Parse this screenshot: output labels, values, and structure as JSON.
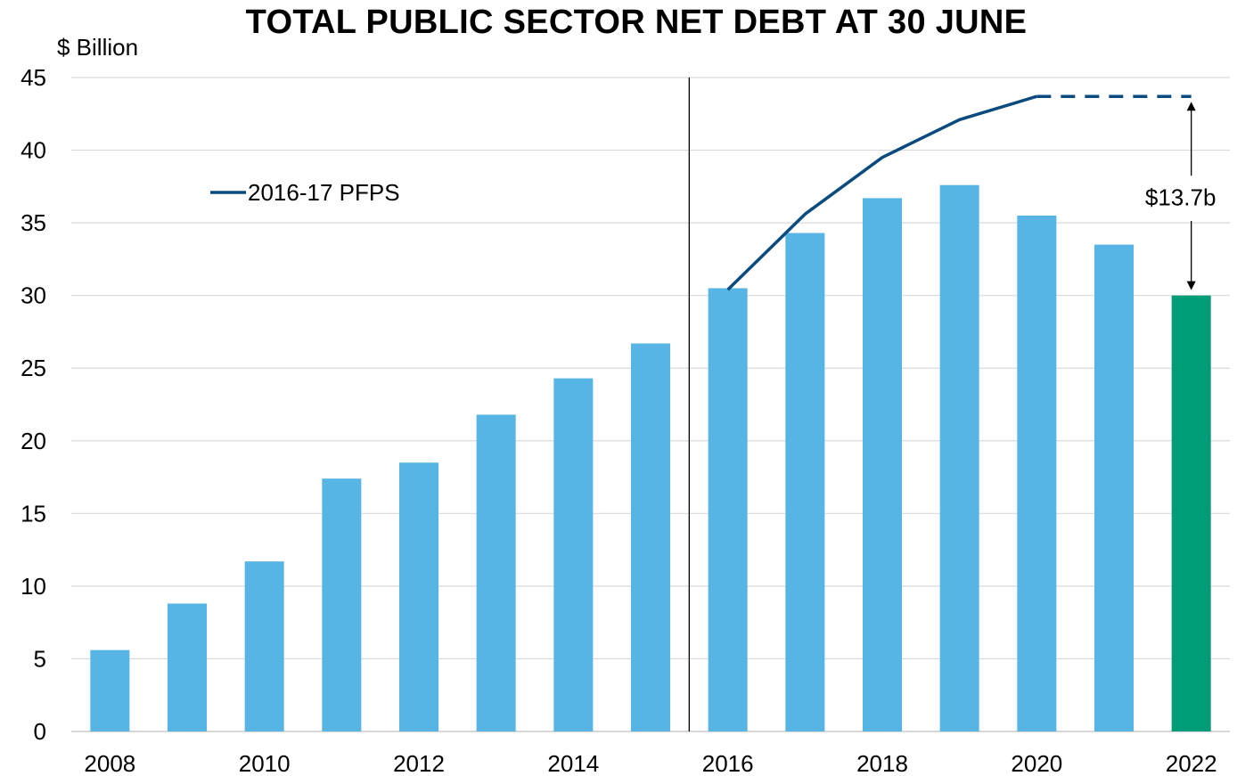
{
  "chart_data": {
    "type": "bar",
    "title": "TOTAL PUBLIC SECTOR NET DEBT AT 30 JUNE",
    "ylabel": "$ Billion",
    "ylim": [
      0,
      45
    ],
    "yticks": [
      0,
      5,
      10,
      15,
      20,
      25,
      30,
      35,
      40,
      45
    ],
    "grid": true,
    "categories": [
      2008,
      2009,
      2010,
      2011,
      2012,
      2013,
      2014,
      2015,
      2016,
      2017,
      2018,
      2019,
      2020,
      2021,
      2022
    ],
    "xtick_labels": [
      "2008",
      "2010",
      "2012",
      "2014",
      "2016",
      "2018",
      "2020",
      "2022"
    ],
    "bars": {
      "values": [
        5.6,
        8.8,
        11.7,
        17.4,
        18.5,
        21.8,
        24.3,
        26.7,
        30.5,
        34.3,
        36.7,
        37.6,
        35.5,
        33.5,
        30.0
      ],
      "color": "#57b5e6",
      "highlight_category": 2022,
      "highlight_color": "#009b77"
    },
    "series": [
      {
        "name": "2016-17 PFPS",
        "type": "line",
        "color": "#0b4a7f",
        "x": [
          2016,
          2017,
          2018,
          2019,
          2020
        ],
        "values": [
          30.4,
          35.6,
          39.5,
          42.1,
          43.7
        ],
        "projection": {
          "x": [
            2020,
            2022
          ],
          "values": [
            43.7,
            43.7
          ],
          "style": "dashed"
        }
      }
    ],
    "legend": {
      "position": "top-left"
    },
    "divider_between": [
      2015,
      2016
    ],
    "annotations": [
      {
        "text": "$13.7b",
        "x": 2022,
        "from": 43.7,
        "to": 30.0
      }
    ]
  }
}
